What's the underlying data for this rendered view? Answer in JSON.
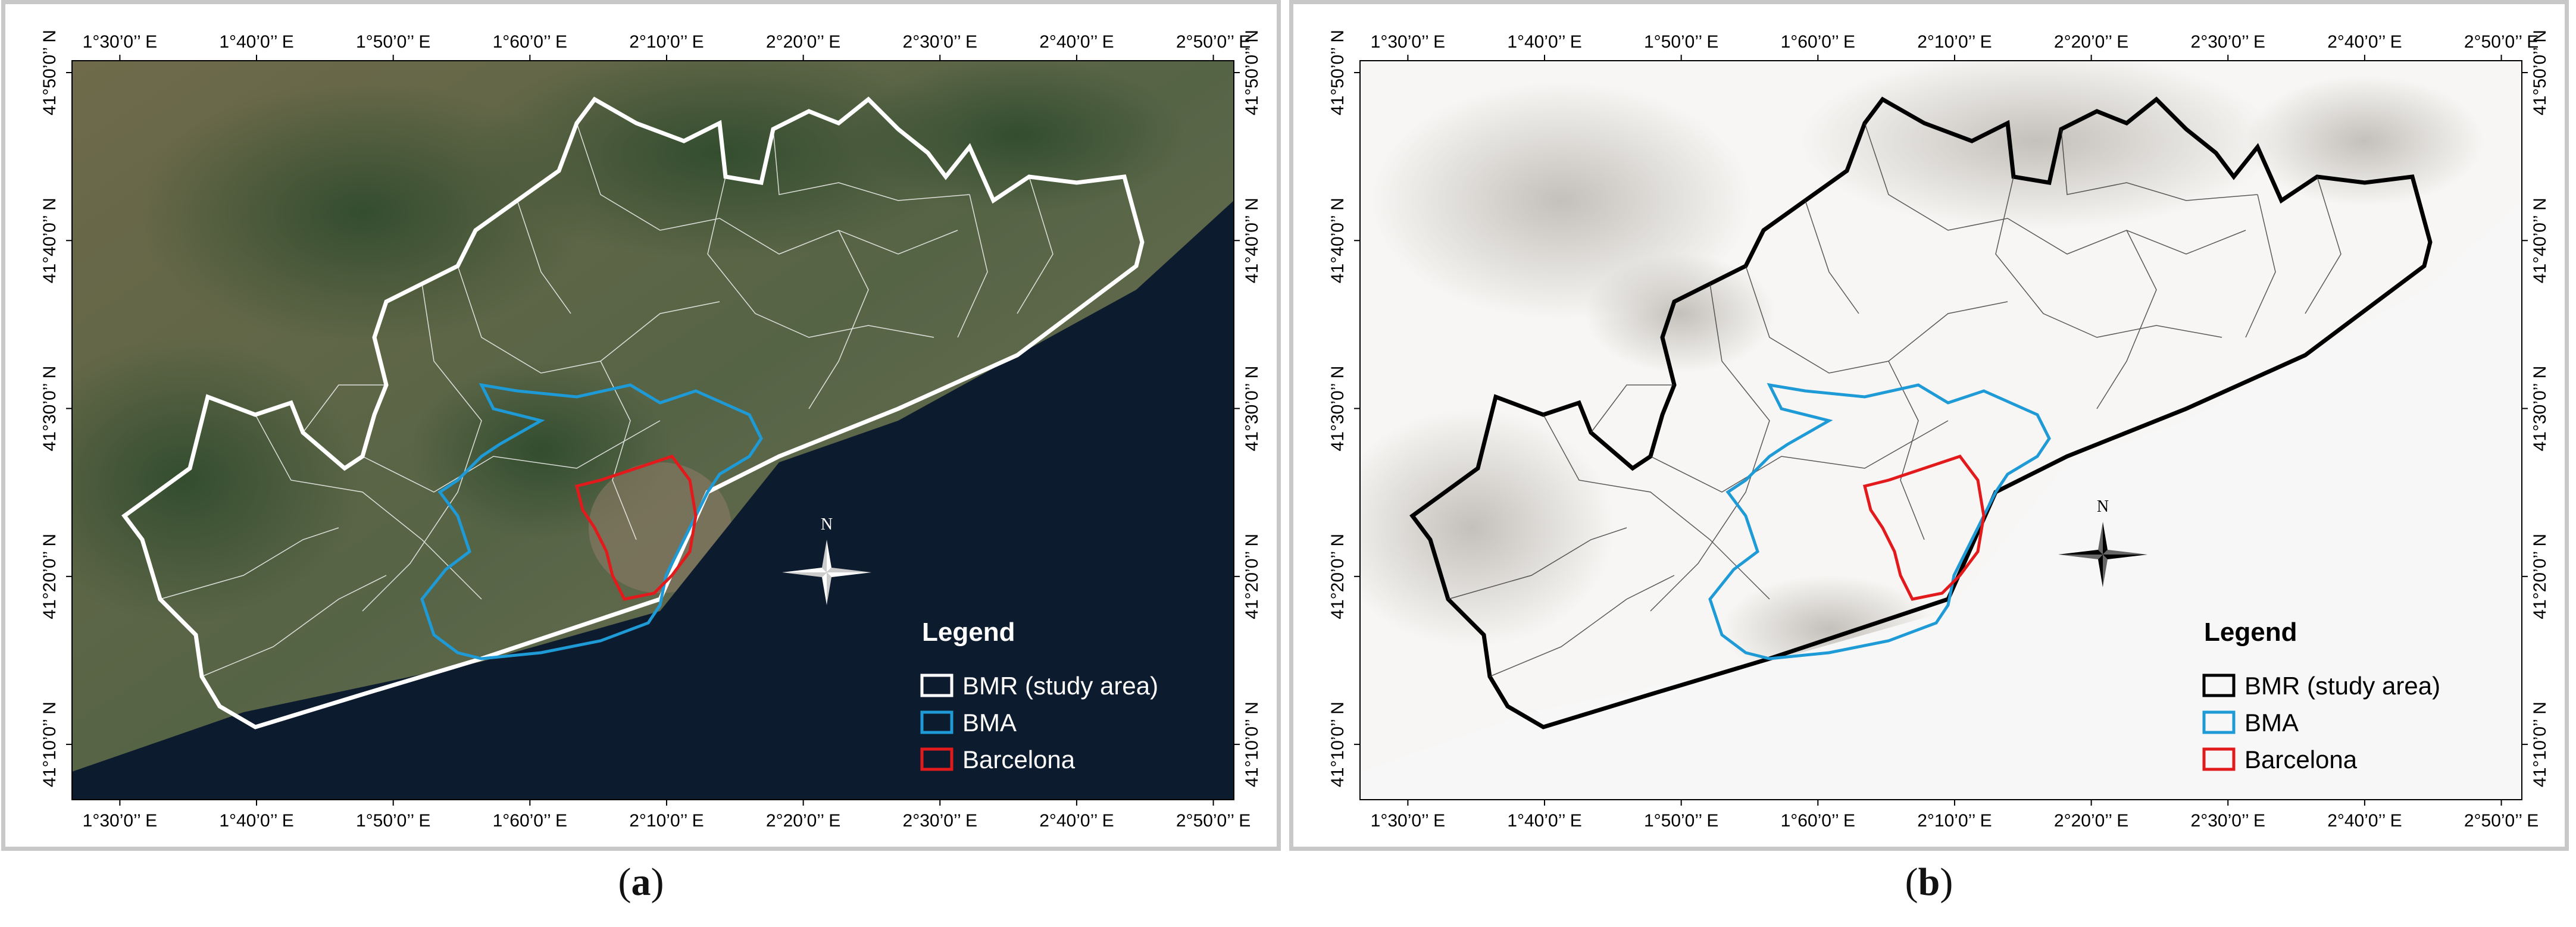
{
  "figure": {
    "x_ticks": [
      "1°30’0’’ E",
      "1°40’0’’ E",
      "1°50’0’’ E",
      "1°60’0’’ E",
      "2°10’0’’ E",
      "2°20’0’’ E",
      "2°30’0’’ E",
      "2°40’0’’ E",
      "2°50’0’’ E"
    ],
    "y_ticks": [
      "41°50’0’’ N",
      "41°40’0’’ N",
      "41°30’0’’ N",
      "41°20’0’’ N",
      "41°10’0’’ N"
    ],
    "legend": {
      "title": "Legend",
      "items": [
        {
          "label": "BMR (study area)",
          "color_a": "#ffffff",
          "color_b": "#000000"
        },
        {
          "label": "BMA",
          "color_a": "#1e9ad6",
          "color_b": "#1e9ad6"
        },
        {
          "label": "Barcelona",
          "color_a": "#e31a1c",
          "color_b": "#e31a1c"
        }
      ]
    },
    "north_label": "N"
  },
  "panels": [
    {
      "id": "a",
      "caption_letter": "a",
      "basemap": "satellite imagery",
      "study_area_color": "#ffffff",
      "municipality_color": "#ffffff",
      "sea_color": "#0d1b2e"
    },
    {
      "id": "b",
      "caption_letter": "b",
      "basemap": "hillshade relief",
      "study_area_color": "#000000",
      "municipality_color": "#333333",
      "sea_color": "#f7f7f7"
    }
  ],
  "colors": {
    "bma": "#1e9ad6",
    "barcelona": "#e31a1c",
    "frame": "#c8c8c8"
  }
}
